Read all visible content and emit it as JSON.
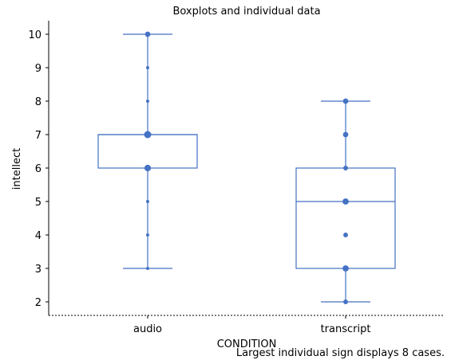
{
  "chart_data": {
    "type": "boxplot",
    "title": "Boxplots and individual data",
    "xlabel": "CONDITION",
    "ylabel": "intellect",
    "ylim": [
      1.6,
      10.4
    ],
    "yticks": [
      2,
      3,
      4,
      5,
      6,
      7,
      8,
      9,
      10
    ],
    "categories": [
      "audio",
      "transcript"
    ],
    "boxes": [
      {
        "category": "audio",
        "whisker_low": 3,
        "q1": 6,
        "median": 7,
        "q3": 7,
        "whisker_high": 10
      },
      {
        "category": "transcript",
        "whisker_low": 2,
        "q1": 3,
        "median": 5,
        "q3": 6,
        "whisker_high": 8
      }
    ],
    "points": [
      {
        "category": "audio",
        "y": 10,
        "count": 3
      },
      {
        "category": "audio",
        "y": 9,
        "count": 1
      },
      {
        "category": "audio",
        "y": 8,
        "count": 1
      },
      {
        "category": "audio",
        "y": 7,
        "count": 8
      },
      {
        "category": "audio",
        "y": 6,
        "count": 6
      },
      {
        "category": "audio",
        "y": 5,
        "count": 1
      },
      {
        "category": "audio",
        "y": 4,
        "count": 1
      },
      {
        "category": "audio",
        "y": 3,
        "count": 1
      },
      {
        "category": "transcript",
        "y": 8,
        "count": 3
      },
      {
        "category": "transcript",
        "y": 7,
        "count": 3
      },
      {
        "category": "transcript",
        "y": 6,
        "count": 2
      },
      {
        "category": "transcript",
        "y": 5,
        "count": 5
      },
      {
        "category": "transcript",
        "y": 4,
        "count": 2
      },
      {
        "category": "transcript",
        "y": 3,
        "count": 5
      },
      {
        "category": "transcript",
        "y": 2,
        "count": 2
      }
    ],
    "note": "Largest individual sign displays 8 cases.",
    "max_sign_cases": 8,
    "grid": false,
    "color": "#4472c4"
  }
}
